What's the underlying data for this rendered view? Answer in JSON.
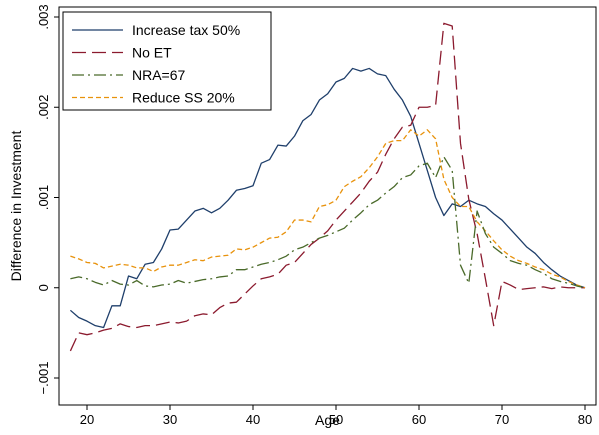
{
  "chart_data": {
    "type": "line",
    "title": "",
    "xlabel": "Age",
    "ylabel": "Difference in Investment",
    "xlim": [
      18,
      80
    ],
    "ylim": [
      -0.001,
      0.003
    ],
    "xticks": [
      20,
      30,
      40,
      50,
      60,
      70,
      80
    ],
    "yticks": [
      -0.001,
      0,
      0.001,
      0.002,
      0.003
    ],
    "ytick_labels": [
      "−.001",
      "0",
      ".001",
      ".002",
      ".003"
    ],
    "grid": false,
    "legend_position": "top-left",
    "series": [
      {
        "name": "Increase tax 50%",
        "color": "#1f3f6b",
        "dash": "solid",
        "x": [
          18,
          19,
          20,
          21,
          22,
          23,
          24,
          25,
          26,
          27,
          28,
          29,
          30,
          31,
          32,
          33,
          34,
          35,
          36,
          37,
          38,
          39,
          40,
          41,
          42,
          43,
          44,
          45,
          46,
          47,
          48,
          49,
          50,
          51,
          52,
          53,
          54,
          55,
          56,
          57,
          58,
          59,
          60,
          61,
          62,
          63,
          64,
          65,
          66,
          67,
          68,
          69,
          70,
          71,
          72,
          73,
          74,
          75,
          76,
          77,
          78,
          79,
          80
        ],
        "values": [
          -0.00025,
          -0.00033,
          -0.00037,
          -0.00042,
          -0.00044,
          -0.0002,
          -0.0002,
          0.00013,
          0.0001,
          0.00026,
          0.00028,
          0.00043,
          0.00064,
          0.00065,
          0.00075,
          0.00085,
          0.00088,
          0.00083,
          0.00088,
          0.00097,
          0.00108,
          0.0011,
          0.00113,
          0.00138,
          0.00142,
          0.00158,
          0.00157,
          0.00168,
          0.00185,
          0.00192,
          0.00208,
          0.00215,
          0.00228,
          0.00232,
          0.00243,
          0.0024,
          0.00243,
          0.00237,
          0.00235,
          0.0022,
          0.00208,
          0.0019,
          0.0016,
          0.0013,
          0.001,
          0.0008,
          0.00093,
          0.0009,
          0.00097,
          0.00093,
          0.0009,
          0.00082,
          0.00075,
          0.00065,
          0.00055,
          0.00045,
          0.00038,
          0.00028,
          0.0002,
          0.00013,
          8e-05,
          3e-05,
          0.0
        ]
      },
      {
        "name": "No ET",
        "color": "#8b1a2e",
        "dash": "14 6",
        "x": [
          18,
          19,
          20,
          21,
          22,
          23,
          24,
          25,
          26,
          27,
          28,
          29,
          30,
          31,
          32,
          33,
          34,
          35,
          36,
          37,
          38,
          39,
          40,
          41,
          42,
          43,
          44,
          45,
          46,
          47,
          48,
          49,
          50,
          51,
          52,
          53,
          54,
          55,
          56,
          57,
          58,
          59,
          60,
          61,
          62,
          63,
          64,
          65,
          66,
          67,
          68,
          69,
          70,
          71,
          72,
          73,
          74,
          75,
          76,
          77,
          78,
          79,
          80
        ],
        "values": [
          -0.0007,
          -0.0005,
          -0.00052,
          -0.0005,
          -0.00047,
          -0.00045,
          -0.0004,
          -0.00043,
          -0.00044,
          -0.00042,
          -0.00042,
          -0.0004,
          -0.00038,
          -0.00039,
          -0.00037,
          -0.00031,
          -0.00029,
          -0.0003,
          -0.00022,
          -0.00017,
          -0.00016,
          -7e-05,
          2e-05,
          0.0001,
          0.00012,
          0.00015,
          0.00025,
          0.00028,
          0.00038,
          0.00048,
          0.00055,
          0.00063,
          0.00075,
          0.00085,
          0.00095,
          0.00105,
          0.00118,
          0.00128,
          0.00148,
          0.00165,
          0.00178,
          0.0018,
          0.002,
          0.002,
          0.00202,
          0.00293,
          0.0029,
          0.0016,
          0.00098,
          0.0006,
          0.0001,
          -0.00042,
          7e-05,
          3e-05,
          -2e-05,
          -1e-05,
          0.0,
          1e-05,
          -1e-05,
          1e-05,
          0.0,
          0.0,
          0.0
        ]
      },
      {
        "name": "NRA=67",
        "color": "#4a6a2a",
        "dash": "12 4 2 4",
        "x": [
          18,
          19,
          20,
          21,
          22,
          23,
          24,
          25,
          26,
          27,
          28,
          29,
          30,
          31,
          32,
          33,
          34,
          35,
          36,
          37,
          38,
          39,
          40,
          41,
          42,
          43,
          44,
          45,
          46,
          47,
          48,
          49,
          50,
          51,
          52,
          53,
          54,
          55,
          56,
          57,
          58,
          59,
          60,
          61,
          62,
          63,
          64,
          65,
          66,
          67,
          68,
          69,
          70,
          71,
          72,
          73,
          74,
          75,
          76,
          77,
          78,
          79,
          80
        ],
        "values": [
          0.0001,
          0.00012,
          0.0001,
          6e-05,
          3e-05,
          8e-05,
          4e-05,
          3e-05,
          8e-05,
          2e-05,
          1e-05,
          3e-05,
          4e-05,
          8e-05,
          5e-05,
          7e-05,
          9e-05,
          0.0001,
          0.00012,
          0.00013,
          0.0002,
          0.0002,
          0.00023,
          0.00026,
          0.00028,
          0.00031,
          0.00035,
          0.00042,
          0.00045,
          0.0005,
          0.00055,
          0.00058,
          0.00062,
          0.00066,
          0.00075,
          0.00083,
          0.00092,
          0.00097,
          0.00105,
          0.00112,
          0.00122,
          0.00125,
          0.00135,
          0.00138,
          0.00122,
          0.00145,
          0.0013,
          0.00025,
          5e-05,
          0.00085,
          0.0006,
          0.00045,
          0.00038,
          0.0003,
          0.00027,
          0.00025,
          0.0002,
          0.00016,
          0.0001,
          7e-05,
          5e-05,
          2e-05,
          0.0
        ]
      },
      {
        "name": "Reduce SS 20%",
        "color": "#e8920c",
        "dash": "5 3",
        "x": [
          18,
          19,
          20,
          21,
          22,
          23,
          24,
          25,
          26,
          27,
          28,
          29,
          30,
          31,
          32,
          33,
          34,
          35,
          36,
          37,
          38,
          39,
          40,
          41,
          42,
          43,
          44,
          45,
          46,
          47,
          48,
          49,
          50,
          51,
          52,
          53,
          54,
          55,
          56,
          57,
          58,
          59,
          60,
          61,
          62,
          63,
          64,
          65,
          66,
          67,
          68,
          69,
          70,
          71,
          72,
          73,
          74,
          75,
          76,
          77,
          78,
          79,
          80
        ],
        "values": [
          0.00035,
          0.00032,
          0.00028,
          0.00027,
          0.00022,
          0.00024,
          0.00026,
          0.00025,
          0.00022,
          0.00022,
          0.00018,
          0.00023,
          0.00025,
          0.00025,
          0.00028,
          0.00031,
          0.0003,
          0.00034,
          0.00035,
          0.00036,
          0.00043,
          0.00042,
          0.00045,
          0.0005,
          0.00055,
          0.00056,
          0.00062,
          0.00075,
          0.00075,
          0.00073,
          0.0009,
          0.00092,
          0.00097,
          0.00112,
          0.00118,
          0.00123,
          0.00133,
          0.00145,
          0.0016,
          0.00163,
          0.00163,
          0.00175,
          0.00168,
          0.00175,
          0.00165,
          0.0012,
          0.001,
          0.0009,
          0.0009,
          0.00073,
          0.00063,
          0.00052,
          0.00042,
          0.00035,
          0.0003,
          0.00027,
          0.00023,
          0.0002,
          0.00015,
          0.00012,
          7e-05,
          3e-05,
          0.0
        ]
      }
    ]
  }
}
